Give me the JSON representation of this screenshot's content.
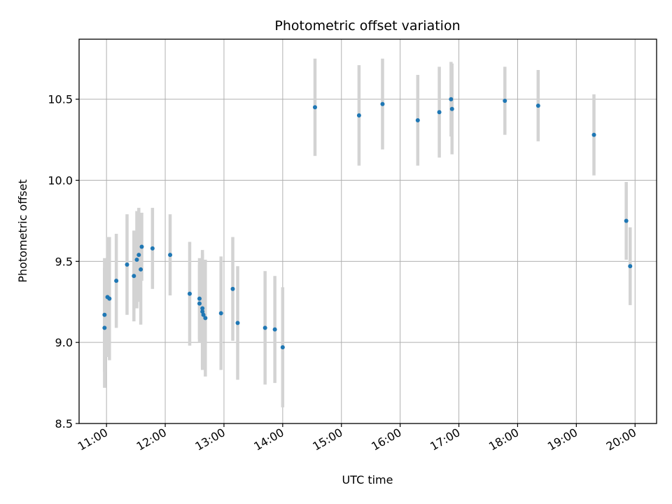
{
  "chart_data": {
    "type": "scatter",
    "title": "Photometric offset variation",
    "xlabel": "UTC time",
    "ylabel": "Photometric offset",
    "x_tick_labels": [
      "11:00",
      "12:00",
      "13:00",
      "14:00",
      "15:00",
      "16:00",
      "17:00",
      "18:00",
      "19:00",
      "20:00"
    ],
    "y_tick_labels": [
      "8.5",
      "9.0",
      "9.5",
      "10.0",
      "10.5"
    ],
    "y_ticks": [
      8.5,
      9.0,
      9.5,
      10.0,
      10.5
    ],
    "xlim": [
      "10:32",
      "20:22"
    ],
    "ylim": [
      8.5,
      10.87
    ],
    "grid": true,
    "colors": {
      "point": "#1f77b4",
      "errorbar": "#d3d3d3",
      "grid": "#b0b0b0"
    },
    "points": [
      {
        "x": "10:58",
        "y": 9.17,
        "err": 0.35
      },
      {
        "x": "10:58",
        "y": 9.09,
        "err": 0.37
      },
      {
        "x": "11:01",
        "y": 9.28,
        "err": 0.37
      },
      {
        "x": "11:03",
        "y": 9.27,
        "err": 0.38
      },
      {
        "x": "11:10",
        "y": 9.38,
        "err": 0.29
      },
      {
        "x": "11:21",
        "y": 9.48,
        "err": 0.31
      },
      {
        "x": "11:28",
        "y": 9.41,
        "err": 0.28
      },
      {
        "x": "11:31",
        "y": 9.51,
        "err": 0.3
      },
      {
        "x": "11:33",
        "y": 9.54,
        "err": 0.29
      },
      {
        "x": "11:35",
        "y": 9.45,
        "err": 0.34
      },
      {
        "x": "11:36",
        "y": 9.59,
        "err": 0.21
      },
      {
        "x": "11:47",
        "y": 9.58,
        "err": 0.25
      },
      {
        "x": "12:05",
        "y": 9.54,
        "err": 0.25
      },
      {
        "x": "12:25",
        "y": 9.3,
        "err": 0.32
      },
      {
        "x": "12:35",
        "y": 9.27,
        "err": 0.25
      },
      {
        "x": "12:35",
        "y": 9.24,
        "err": 0.24
      },
      {
        "x": "12:38",
        "y": 9.21,
        "err": 0.36
      },
      {
        "x": "12:38",
        "y": 9.19,
        "err": 0.36
      },
      {
        "x": "12:39",
        "y": 9.17,
        "err": 0.34
      },
      {
        "x": "12:41",
        "y": 9.15,
        "err": 0.36
      },
      {
        "x": "12:57",
        "y": 9.18,
        "err": 0.35
      },
      {
        "x": "13:09",
        "y": 9.33,
        "err": 0.32
      },
      {
        "x": "13:14",
        "y": 9.12,
        "err": 0.35
      },
      {
        "x": "13:42",
        "y": 9.09,
        "err": 0.35
      },
      {
        "x": "13:52",
        "y": 9.08,
        "err": 0.33
      },
      {
        "x": "14:00",
        "y": 8.97,
        "err": 0.37
      },
      {
        "x": "14:33",
        "y": 10.45,
        "err": 0.3
      },
      {
        "x": "15:18",
        "y": 10.4,
        "err": 0.31
      },
      {
        "x": "15:42",
        "y": 10.47,
        "err": 0.28
      },
      {
        "x": "16:18",
        "y": 10.37,
        "err": 0.28
      },
      {
        "x": "16:40",
        "y": 10.42,
        "err": 0.28
      },
      {
        "x": "16:52",
        "y": 10.5,
        "err": 0.23
      },
      {
        "x": "16:53",
        "y": 10.44,
        "err": 0.28
      },
      {
        "x": "17:47",
        "y": 10.49,
        "err": 0.21
      },
      {
        "x": "18:21",
        "y": 10.46,
        "err": 0.22
      },
      {
        "x": "19:18",
        "y": 10.28,
        "err": 0.25
      },
      {
        "x": "19:51",
        "y": 9.75,
        "err": 0.24
      },
      {
        "x": "19:55",
        "y": 9.47,
        "err": 0.24
      }
    ]
  }
}
